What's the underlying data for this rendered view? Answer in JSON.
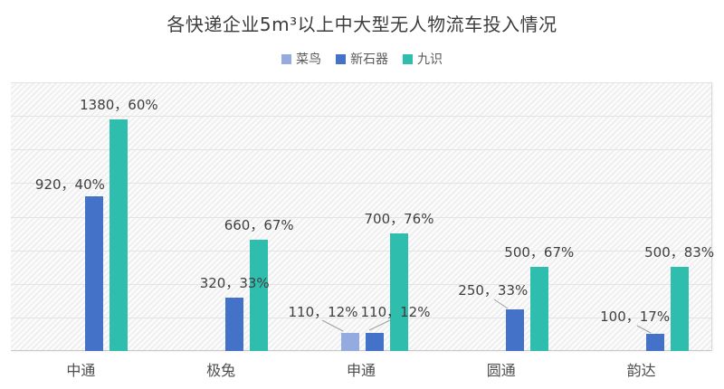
{
  "chart_data": {
    "type": "bar",
    "title": "各快递企业5m³以上中大型无人物流车投入情况",
    "categories": [
      "中通",
      "极兔",
      "申通",
      "圆通",
      "韵达"
    ],
    "series": [
      {
        "name": "菜鸟",
        "color": "#93ABDE",
        "values": [
          null,
          null,
          110,
          null,
          null
        ],
        "labels": [
          null,
          null,
          "110，12%",
          null,
          null
        ]
      },
      {
        "name": "新石器",
        "color": "#4472C8",
        "values": [
          920,
          320,
          110,
          250,
          100
        ],
        "labels": [
          "920，40%",
          "320，33%",
          "110，12%",
          "250，33%",
          "100，17%"
        ]
      },
      {
        "name": "九识",
        "color": "#2FBEAD",
        "values": [
          1380,
          660,
          700,
          500,
          500
        ],
        "labels": [
          "1380，60%",
          "660，67%",
          "700，76%",
          "500，67%",
          "500，83%"
        ]
      }
    ],
    "ylim": [
      0,
      1600
    ],
    "gridline_interval": 200,
    "grid": true,
    "legend_position": "top",
    "label_overrides": [
      {
        "series": 1,
        "category": 0,
        "dx": -27,
        "gap": 5
      },
      {
        "series": 0,
        "category": 2,
        "dx": -30,
        "gap": 15,
        "leader": [
          [
            356,
            354
          ],
          [
            379,
            366
          ]
        ]
      },
      {
        "series": 1,
        "category": 2,
        "dx": 23,
        "gap": 15,
        "leader": [
          [
            431,
            354
          ],
          [
            408,
            365
          ]
        ]
      },
      {
        "series": 1,
        "category": 3,
        "dx": -24,
        "gap": 13,
        "leader": [
          [
            546,
            331
          ],
          [
            561,
            341
          ]
        ]
      },
      {
        "series": 1,
        "category": 4,
        "dx": -22,
        "gap": 11,
        "leader": [
          [
            704,
            360
          ],
          [
            719,
            368
          ]
        ]
      }
    ]
  },
  "colors": {
    "grid": "#e3e3e3",
    "axis": "#c6c6c6",
    "label_text": "#3f3f3f",
    "axis_text": "#4d4d4d",
    "leader": "#a0a0a0"
  }
}
